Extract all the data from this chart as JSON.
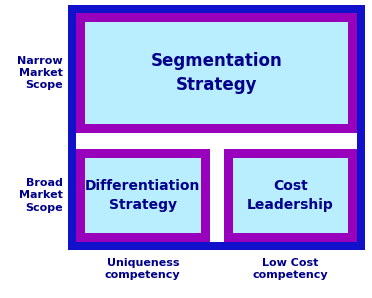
{
  "background_color": "#ffffff",
  "outer_border_color": "#1111cc",
  "box_border_color": "#9900bb",
  "box_fill_color": "#b8eeff",
  "text_color": "#00008b",
  "label_color": "#00008b",
  "title_seg": "Segmentation\nStrategy",
  "title_diff": "Differentiation\nStrategy",
  "title_cost": "Cost\nLeadership",
  "label_narrow": "Narrow\nMarket\nScope",
  "label_broad": "Broad\nMarket\nScope",
  "label_unique": "Uniqueness\ncompetency",
  "label_lowcost": "Low Cost\ncompetency",
  "fig_width": 3.72,
  "fig_height": 2.98,
  "dpi": 100
}
